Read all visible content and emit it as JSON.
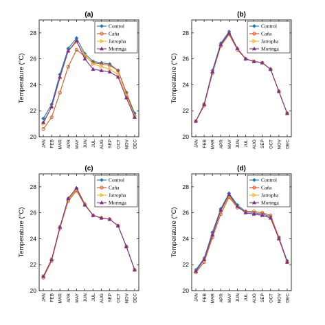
{
  "chart_data": [
    {
      "type": "line",
      "title": "(a)",
      "ylabel": "Temperature (°C)",
      "xlabel": "",
      "ylim": [
        20,
        29
      ],
      "yticks": [
        20,
        22,
        24,
        26,
        28
      ],
      "categories": [
        "JAN",
        "FEB",
        "MAR",
        "APR",
        "MAY",
        "JUN",
        "JUL",
        "AUG",
        "SEP",
        "OCT",
        "NOV",
        "DEC"
      ],
      "legend": "top-right",
      "grid": false,
      "series": [
        {
          "name": "Control",
          "values": [
            21.4,
            22.5,
            24.8,
            26.8,
            27.6,
            26.4,
            25.8,
            25.7,
            25.6,
            25.1,
            23.4,
            21.8
          ]
        },
        {
          "name": "Caña",
          "values": [
            20.6,
            21.5,
            23.4,
            25.4,
            26.7,
            26.2,
            25.7,
            25.6,
            25.5,
            25.1,
            23.4,
            21.6
          ]
        },
        {
          "name": "Jatropha",
          "values": [
            21.0,
            22.3,
            24.5,
            26.6,
            27.3,
            26.3,
            25.6,
            25.4,
            25.2,
            24.8,
            23.2,
            21.6
          ]
        },
        {
          "name": "Moringa",
          "values": [
            21.1,
            22.3,
            24.6,
            26.6,
            27.4,
            26.0,
            25.2,
            25.1,
            25.0,
            24.6,
            23.0,
            21.5
          ]
        }
      ]
    },
    {
      "type": "line",
      "title": "(b)",
      "ylabel": "Temperature (°C)",
      "xlabel": "",
      "ylim": [
        20,
        29
      ],
      "yticks": [
        20,
        22,
        24,
        26,
        28
      ],
      "categories": [
        "JAN",
        "FEB",
        "MAR",
        "APR",
        "MAY",
        "JUN",
        "JUL",
        "AUG",
        "SEP",
        "OCT",
        "NOV",
        "DEC"
      ],
      "legend": "top-right",
      "grid": false,
      "series": [
        {
          "name": "Control",
          "values": [
            21.2,
            22.5,
            25.1,
            27.2,
            28.1,
            26.8,
            26.0,
            25.8,
            25.7,
            25.2,
            23.5,
            21.8
          ]
        },
        {
          "name": "Caña",
          "values": [
            21.2,
            22.4,
            24.9,
            27.0,
            27.9,
            26.7,
            26.0,
            25.8,
            25.7,
            25.2,
            23.5,
            21.8
          ]
        },
        {
          "name": "Jatropha",
          "values": [
            21.2,
            22.5,
            25.0,
            27.1,
            28.0,
            26.8,
            26.0,
            25.8,
            25.7,
            25.2,
            23.5,
            21.8
          ]
        },
        {
          "name": "Moringa",
          "values": [
            21.2,
            22.5,
            25.0,
            27.1,
            28.0,
            26.8,
            26.0,
            25.8,
            25.7,
            25.2,
            23.5,
            21.8
          ]
        }
      ]
    },
    {
      "type": "line",
      "title": "(c)",
      "ylabel": "Temperature (°C)",
      "xlabel": "",
      "ylim": [
        20,
        29
      ],
      "yticks": [
        20,
        22,
        24,
        26,
        28
      ],
      "categories": [
        "JAN",
        "FEB",
        "MAR",
        "APR",
        "MAY",
        "JUN",
        "JUL",
        "AUG",
        "SEP",
        "OCT",
        "NOV",
        "DEC"
      ],
      "legend": "top-right",
      "grid": false,
      "series": [
        {
          "name": "Control",
          "values": [
            21.1,
            22.4,
            24.9,
            27.1,
            27.9,
            26.7,
            25.8,
            25.6,
            25.5,
            25.0,
            23.4,
            21.6
          ]
        },
        {
          "name": "Caña",
          "values": [
            21.0,
            22.3,
            24.8,
            26.9,
            27.7,
            26.6,
            25.8,
            25.6,
            25.5,
            25.0,
            23.4,
            21.6
          ]
        },
        {
          "name": "Jatropha",
          "values": [
            21.1,
            22.4,
            24.9,
            27.0,
            27.8,
            26.7,
            25.8,
            25.6,
            25.5,
            25.0,
            23.4,
            21.6
          ]
        },
        {
          "name": "Moringa",
          "values": [
            21.1,
            22.4,
            24.9,
            27.1,
            27.9,
            26.6,
            25.8,
            25.6,
            25.5,
            25.0,
            23.4,
            21.6
          ]
        }
      ]
    },
    {
      "type": "line",
      "title": "(d)",
      "ylabel": "Temperature (°C)",
      "xlabel": "",
      "ylim": [
        20,
        29
      ],
      "yticks": [
        20,
        22,
        24,
        26,
        28
      ],
      "categories": [
        "JAN",
        "FEB",
        "MAR",
        "APR",
        "MAY",
        "JUN",
        "JUL",
        "AUG",
        "SEP",
        "OCT",
        "NOV",
        "DEC"
      ],
      "legend": "top-right",
      "grid": false,
      "series": [
        {
          "name": "Control",
          "values": [
            21.6,
            22.5,
            24.5,
            26.3,
            27.5,
            26.6,
            26.1,
            26.0,
            25.9,
            25.7,
            24.1,
            22.3
          ]
        },
        {
          "name": "Caña",
          "values": [
            21.4,
            22.2,
            24.1,
            25.9,
            27.2,
            26.4,
            26.1,
            26.1,
            26.0,
            25.8,
            24.1,
            22.2
          ]
        },
        {
          "name": "Jatropha",
          "values": [
            21.5,
            22.4,
            24.3,
            26.1,
            27.3,
            26.5,
            26.0,
            25.9,
            25.8,
            25.6,
            24.0,
            22.2
          ]
        },
        {
          "name": "Moringa",
          "values": [
            21.5,
            22.4,
            24.3,
            26.2,
            27.4,
            26.5,
            26.0,
            25.9,
            25.8,
            25.6,
            24.0,
            22.2
          ]
        }
      ]
    }
  ],
  "style": {
    "series_colors": [
      "#1f77b4",
      "#d95319",
      "#edb120",
      "#7e2f8e"
    ],
    "series_markers": [
      "diamond",
      "circle",
      "right-triangle",
      "triangle-up"
    ]
  }
}
